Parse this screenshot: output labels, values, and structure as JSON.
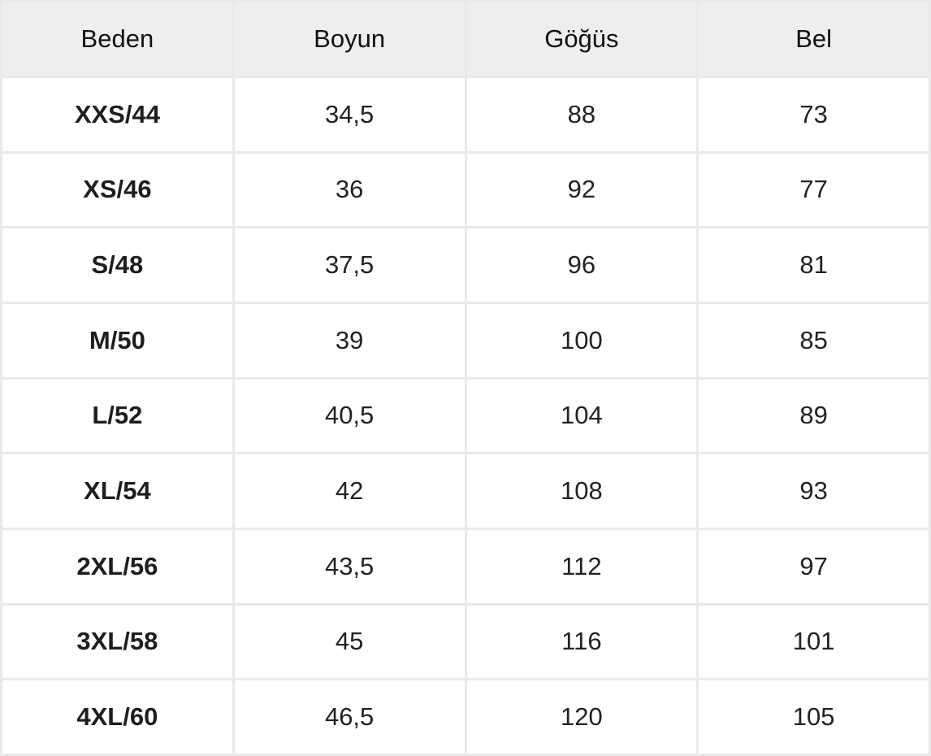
{
  "headers": [
    "Beden",
    "Boyun",
    "Göğüs",
    "Bel"
  ],
  "rows": [
    [
      "XXS/44",
      "34,5",
      "88",
      "73"
    ],
    [
      "XS/46",
      "36",
      "92",
      "77"
    ],
    [
      "S/48",
      "37,5",
      "96",
      "81"
    ],
    [
      "M/50",
      "39",
      "100",
      "85"
    ],
    [
      "L/52",
      "40,5",
      "104",
      "89"
    ],
    [
      "XL/54",
      "42",
      "108",
      "93"
    ],
    [
      "2XL/56",
      "43,5",
      "112",
      "97"
    ],
    [
      "3XL/58",
      "45",
      "116",
      "101"
    ],
    [
      "4XL/60",
      "46,5",
      "120",
      "105"
    ]
  ]
}
